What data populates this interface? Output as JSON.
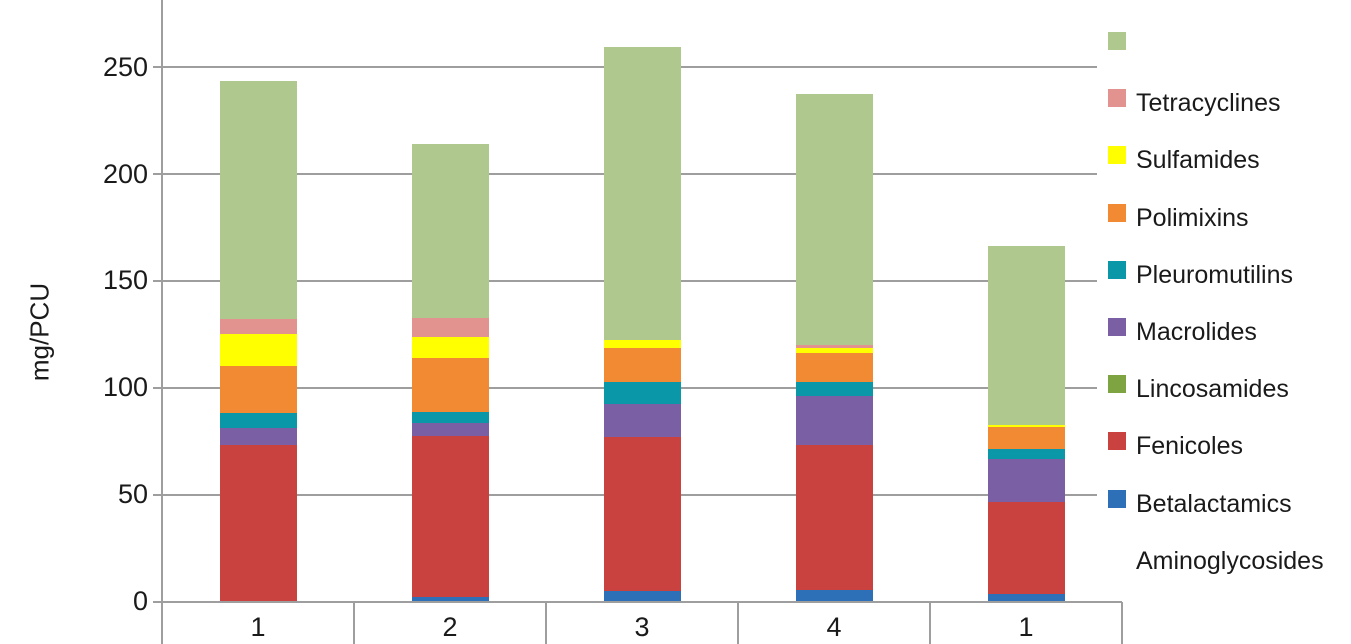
{
  "chart_data": {
    "type": "bar",
    "stacked": true,
    "title": "",
    "xlabel": "",
    "ylabel": "mg/PCU",
    "categories": [
      "1",
      "2",
      "3",
      "4",
      "1"
    ],
    "y_ticks": [
      0,
      50,
      100,
      150,
      200,
      250
    ],
    "ylim": [
      0,
      282
    ],
    "grid": true,
    "legend_position": "right",
    "series": [
      {
        "name": "Aminoglycosides",
        "color": "#ffffff",
        "values": [
          0,
          0,
          0,
          0,
          0
        ]
      },
      {
        "name": "Betalactamics",
        "color": "#2e70b7",
        "values": [
          0,
          2,
          4.5,
          5,
          3.5
        ]
      },
      {
        "name": "Fenicoles",
        "color": "#c9423f",
        "values": [
          73,
          75,
          72,
          68,
          43
        ]
      },
      {
        "name": "Lincosamides",
        "color": "#7da440",
        "values": [
          0,
          0,
          0,
          0,
          0
        ]
      },
      {
        "name": "Macrolides",
        "color": "#7a5fa5",
        "values": [
          8,
          6.5,
          15.5,
          23,
          20
        ]
      },
      {
        "name": "Pleuromutilins",
        "color": "#0a98a8",
        "values": [
          7,
          5,
          10.5,
          6.5,
          4.5
        ]
      },
      {
        "name": "Polimixins",
        "color": "#f18a32",
        "values": [
          22,
          25,
          16,
          13.5,
          10.5
        ]
      },
      {
        "name": "Sulfamides",
        "color": "#ffff00",
        "values": [
          15,
          10,
          3.5,
          2.5,
          1
        ]
      },
      {
        "name": "Tetracyclines",
        "color": "#e2938f",
        "values": [
          7,
          9,
          0,
          1.5,
          0
        ]
      },
      {
        "name": "",
        "color": "#aec88e",
        "values": [
          111.5,
          81.5,
          137,
          117,
          83.5
        ]
      }
    ],
    "bar_totals": [
      243.5,
      214,
      259,
      237,
      166
    ],
    "legend_entries_top_to_bottom": [
      {
        "label": "",
        "swatch": "#aec88e"
      },
      {
        "label": "Tetracyclines",
        "swatch": "#e2938f"
      },
      {
        "label": "Sulfamides",
        "swatch": "#ffff00"
      },
      {
        "label": "Polimixins",
        "swatch": "#f18a32"
      },
      {
        "label": "Pleuromutilins",
        "swatch": "#0a98a8"
      },
      {
        "label": "Macrolides",
        "swatch": "#7a5fa5"
      },
      {
        "label": "Lincosamides",
        "swatch": "#7da440"
      },
      {
        "label": "Fenicoles",
        "swatch": "#c9423f"
      },
      {
        "label": "Betalactamics",
        "swatch": "#2e70b7"
      },
      {
        "label": "Aminoglycosides",
        "swatch": null
      }
    ],
    "colors": {
      "grid": "#9e9e9e",
      "axis": "#9e9e9e",
      "text": "#1a1a1a",
      "background": "#ffffff"
    }
  }
}
